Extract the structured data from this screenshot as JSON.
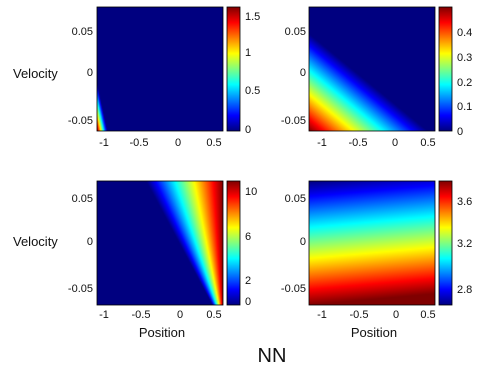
{
  "figure": {
    "caption": "NN"
  },
  "chart_data": [
    {
      "type": "heatmap",
      "panel": "top-left",
      "xlabel": "",
      "ylabel": "Velocity",
      "xlim": [
        -1.2,
        0.6
      ],
      "ylim": [
        -0.07,
        0.07
      ],
      "x_ticks": [
        -1,
        -0.5,
        0,
        0.5
      ],
      "x_tick_labels": [
        "-1",
        "-0.5",
        "0",
        "0.5"
      ],
      "y_ticks": [
        -0.05,
        0,
        0.05
      ],
      "y_tick_labels": [
        "-0.05",
        "0",
        "0.05"
      ],
      "colorbar": {
        "range": [
          0,
          1.6
        ],
        "ticks": [
          0,
          0.5,
          1,
          1.5
        ],
        "tick_labels": [
          "0",
          "0.5",
          "1",
          "1.5"
        ]
      },
      "surface": {
        "kind": "corner_wedge",
        "corner_value": 1.6,
        "corner_position": -1.2,
        "corner_velocity": -0.07,
        "zero_position_at_min_velocity": -1.05,
        "zero_velocity_at_min_position": -0.015
      }
    },
    {
      "type": "heatmap",
      "panel": "top-right",
      "xlabel": "",
      "ylabel": "",
      "xlim": [
        -1.2,
        0.6
      ],
      "ylim": [
        -0.07,
        0.07
      ],
      "x_ticks": [
        -1,
        -0.5,
        0,
        0.5
      ],
      "x_tick_labels": [
        "-1",
        "-0.5",
        "0",
        "0.5"
      ],
      "y_ticks": [
        -0.05,
        0,
        0.05
      ],
      "y_tick_labels": [
        "-0.05",
        "0",
        "0.05"
      ],
      "colorbar": {
        "range": [
          0,
          0.48
        ],
        "ticks": [
          0,
          0.1,
          0.2,
          0.3,
          0.4
        ],
        "tick_labels": [
          "0",
          "0.1",
          "0.2",
          "0.3",
          "0.4"
        ]
      },
      "surface": {
        "kind": "corner_wedge",
        "corner_value": 0.48,
        "corner_position": -1.2,
        "corner_velocity": -0.07,
        "zero_position_at_min_velocity": 0.5,
        "zero_velocity_at_min_position": 0.04
      }
    },
    {
      "type": "heatmap",
      "panel": "bottom-left",
      "xlabel": "Position",
      "ylabel": "Velocity",
      "xlim": [
        -1.2,
        0.6
      ],
      "ylim": [
        -0.07,
        0.07
      ],
      "x_ticks": [
        -1,
        -0.5,
        0,
        0.5
      ],
      "x_tick_labels": [
        "-1",
        "-0.5",
        "0",
        "0.5"
      ],
      "y_ticks": [
        -0.05,
        0,
        0.05
      ],
      "y_tick_labels": [
        "-0.05",
        "0",
        "0.05"
      ],
      "colorbar": {
        "range": [
          0,
          10.5
        ],
        "ticks": [
          0,
          2,
          6,
          10
        ],
        "tick_labels": [
          "0",
          "2",
          "6",
          "10"
        ]
      },
      "surface": {
        "kind": "corner_wedge",
        "corner_value": 10.5,
        "corner_position": 0.6,
        "corner_velocity": 0.07,
        "zero_position_at_max_velocity": -0.5,
        "zero_position_at_min_velocity": 0.45
      }
    },
    {
      "type": "heatmap",
      "panel": "bottom-right",
      "xlabel": "Position",
      "ylabel": "",
      "xlim": [
        -1.2,
        0.6
      ],
      "ylim": [
        -0.07,
        0.07
      ],
      "x_ticks": [
        -1,
        -0.5,
        0,
        0.5
      ],
      "x_tick_labels": [
        "-1",
        "-0.5",
        "0",
        "0.5"
      ],
      "y_ticks": [
        -0.05,
        0,
        0.05
      ],
      "y_tick_labels": [
        "-0.05",
        "0",
        "0.05"
      ],
      "colorbar": {
        "range": [
          2.7,
          3.8
        ],
        "ticks": [
          2.8,
          3.2,
          3.6
        ],
        "tick_labels": [
          "2.8",
          "3.2",
          "3.6"
        ]
      },
      "surface": {
        "kind": "tilted_gradient",
        "value_at_max_velocity": 2.7,
        "value_at_min_velocity": 3.8,
        "position_slope": -0.09
      }
    }
  ]
}
